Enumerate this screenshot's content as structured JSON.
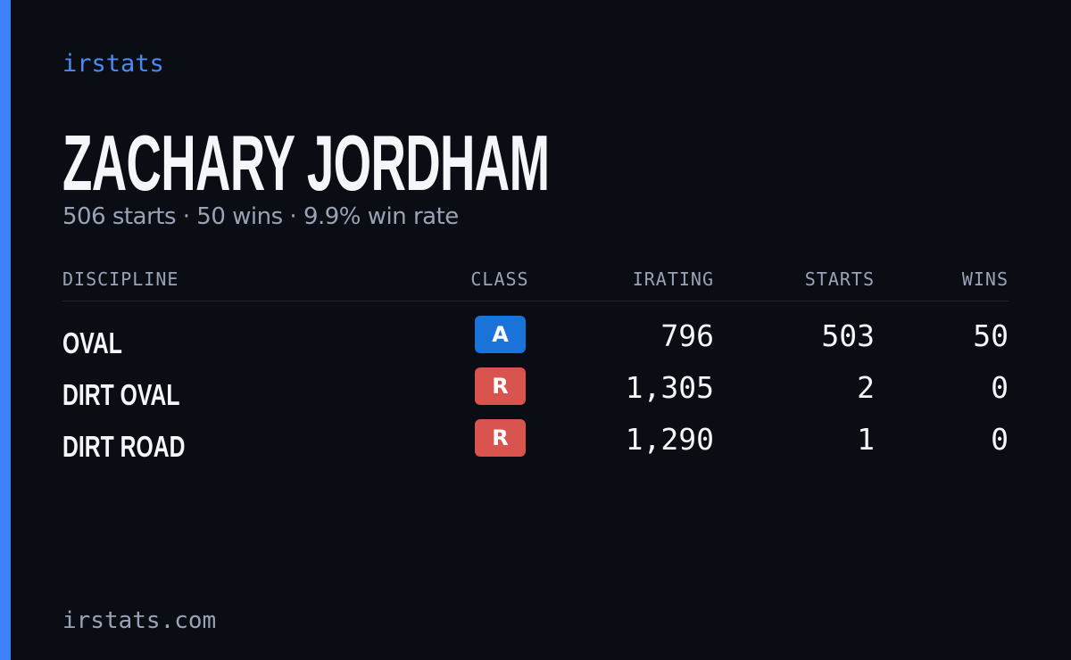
{
  "brand": "irstats",
  "profile": {
    "name": "ZACHARY JORDHAM",
    "summary": "506 starts · 50 wins · 9.9% win rate"
  },
  "table": {
    "headers": [
      "DISCIPLINE",
      "CLASS",
      "IRATING",
      "STARTS",
      "WINS"
    ],
    "rows": [
      [
        "OVAL",
        "A",
        "796",
        "503",
        "50"
      ],
      [
        "DIRT OVAL",
        "R",
        "1,305",
        "2",
        "0"
      ],
      [
        "DIRT ROAD",
        "R",
        "1,290",
        "1",
        "0"
      ]
    ]
  },
  "footer": "irstats.com"
}
